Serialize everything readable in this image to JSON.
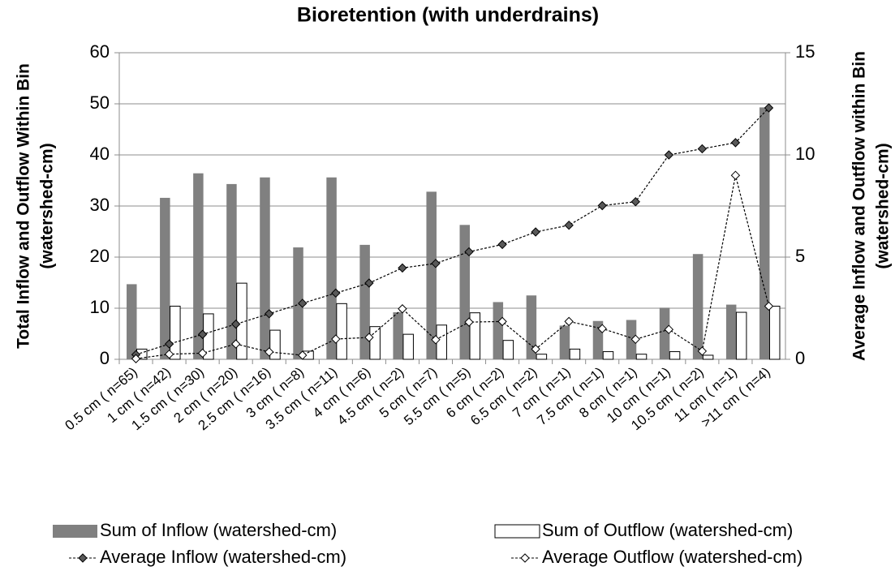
{
  "chart_data": {
    "type": "bar-line",
    "title": "Bioretention (with underdrains)",
    "ylabel": [
      "Total Inflow and Outflow Within Bin",
      "(watershed-cm)"
    ],
    "y2label": [
      "Average Inflow and Outflow within Bin",
      "(watershed-cm)"
    ],
    "categories": [
      "0.5 cm ( n=65)",
      "1 cm ( n=42)",
      "1.5 cm ( n=30)",
      "2 cm ( n=20)",
      "2.5 cm ( n=16)",
      "3 cm ( n=8)",
      "3.5 cm ( n=11)",
      "4 cm ( n=6)",
      "4.5 cm ( n=2)",
      "5 cm ( n=7)",
      "5.5 cm ( n=5)",
      "6 cm ( n=2)",
      "6.5 cm ( n=2)",
      "7 cm ( n=1)",
      "7.5 cm ( n=1)",
      "8 cm ( n=1)",
      "10 cm ( n=1)",
      "10.5 cm ( n=2)",
      "11 cm ( n=1)",
      ">11 cm ( n=4)"
    ],
    "series": [
      {
        "name": "Sum of Inflow (watershed-cm)",
        "kind": "bar",
        "color": "#808080",
        "values": [
          14.7,
          31.6,
          36.4,
          34.3,
          35.6,
          21.9,
          35.6,
          22.4,
          9.2,
          32.8,
          26.3,
          11.2,
          12.5,
          6.6,
          7.5,
          7.7,
          10.1,
          20.6,
          10.7,
          49.3
        ]
      },
      {
        "name": "Sum of Outflow (watershed-cm)",
        "kind": "bar",
        "color": "#ffffff",
        "values": [
          2.0,
          10.4,
          8.9,
          14.9,
          5.7,
          1.6,
          10.9,
          6.4,
          4.9,
          6.7,
          9.1,
          3.7,
          1.0,
          2.0,
          1.5,
          1.0,
          1.5,
          0.8,
          9.2,
          10.4
        ]
      },
      {
        "name": "Average Inflow (watershed-cm)",
        "kind": "line",
        "axis": "y2",
        "color": "#595959",
        "values": [
          0.23,
          0.75,
          1.22,
          1.72,
          2.23,
          2.74,
          3.24,
          3.73,
          4.47,
          4.69,
          5.26,
          5.62,
          6.23,
          6.56,
          7.52,
          7.71,
          10.0,
          10.3,
          10.6,
          12.3
        ]
      },
      {
        "name": "Average Outflow (watershed-cm)",
        "kind": "line",
        "axis": "y2",
        "color": "#ffffff",
        "values": [
          0.03,
          0.25,
          0.3,
          0.75,
          0.36,
          0.2,
          0.99,
          1.07,
          2.47,
          0.96,
          1.82,
          1.85,
          0.5,
          1.85,
          1.5,
          0.98,
          1.46,
          0.4,
          9.0,
          2.6
        ]
      }
    ],
    "ylim": [
      0,
      60
    ],
    "yticks": [
      0,
      10,
      20,
      30,
      40,
      50,
      60
    ],
    "y2lim": [
      0,
      15
    ],
    "y2ticks": [
      0,
      5,
      10,
      15
    ],
    "grid": true
  }
}
